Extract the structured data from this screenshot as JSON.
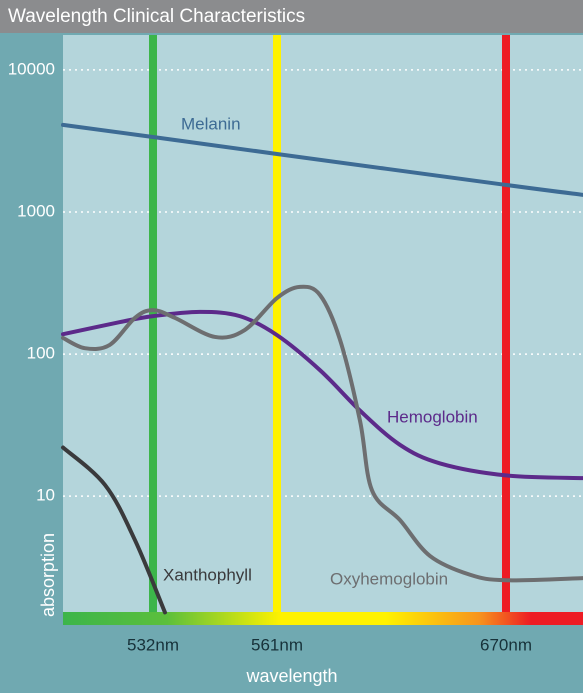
{
  "chart_data": {
    "type": "line",
    "title": "Wavelength Clinical Characteristics",
    "x_label": "wavelength",
    "y_label": "absorption",
    "log_y": true,
    "grid": true,
    "xlim": [
      511,
      707
    ],
    "ylim": [
      1.24,
      17600
    ],
    "xticks": [
      {
        "value": 532,
        "label": "532nm"
      },
      {
        "value": 561,
        "label": "561nm"
      },
      {
        "value": 670,
        "label": "670nm"
      }
    ],
    "xtick_colors": [
      "#3cb54a",
      "#fff200",
      "#ed1c24"
    ],
    "yticks": [
      10,
      100,
      1000,
      10000
    ],
    "series": [
      {
        "name": "Melanin",
        "color": "#3d6b94",
        "x": [
          511,
          532,
          561,
          670,
          707
        ],
        "values": [
          4100,
          3370,
          2560,
          1550,
          1320
        ]
      },
      {
        "name": "Hemoglobin",
        "color": "#5c2a8a",
        "x": [
          511,
          524.3,
          532,
          543,
          552.3,
          561,
          581.5,
          600.5,
          619.5,
          638.6,
          670,
          707
        ],
        "values": [
          138,
          168,
          185,
          198,
          185,
          136,
          77,
          40,
          23,
          17,
          14,
          13.4
        ]
      },
      {
        "name": "Oxyhemoglobin",
        "color": "#6d6e70",
        "x": [
          511,
          516.1,
          521.9,
          527.8,
          532,
          537.1,
          546.5,
          553.5,
          561,
          571.9,
          581.5,
          591,
          600.5,
          606.2,
          619.5,
          633.8,
          652.9,
          670,
          707
        ],
        "values": [
          130,
          110,
          116,
          180,
          204,
          180,
          132,
          148,
          248,
          297,
          260,
          126,
          34,
          11,
          6.8,
          3.8,
          2.8,
          2.56,
          2.65
        ]
      },
      {
        "name": "Xanthophyll",
        "color": "#3a3a3c",
        "x": [
          511,
          520.8,
          527.8,
          534.8
        ],
        "values": [
          22,
          12,
          4.9,
          1.52
        ]
      }
    ]
  }
}
